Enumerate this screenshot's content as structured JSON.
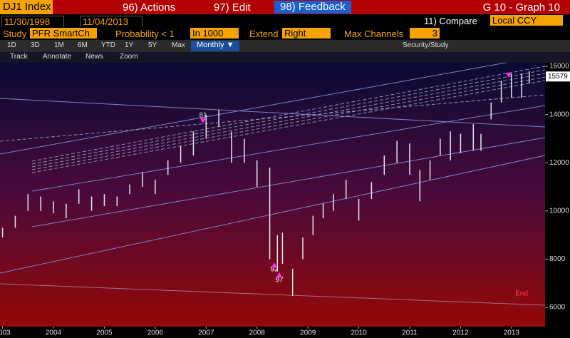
{
  "toolbar": {
    "ticker": "DJ1 Index",
    "menus": [
      "96) Actions",
      "97) Edit",
      "98) Feedback"
    ],
    "graph": "G 10 - Graph 10",
    "start_date": "11/30/1998",
    "end_date": "11/04/2013",
    "compare": "11) Compare",
    "currency": "Local CCY",
    "study_label": "Study",
    "study": "PFR SmartCh",
    "probability": "Probability < 1",
    "in": "In 1000",
    "extend_label": "Extend",
    "extend": "Right",
    "channels_label": "Max Channels",
    "channels": "3",
    "periods": [
      "1D",
      "3D",
      "1M",
      "6M",
      "YTD",
      "1Y",
      "5Y",
      "Max"
    ],
    "frequency": "Monthly ▼",
    "security_study": "Security/Study",
    "tools": [
      "Track",
      "Annotate",
      "News",
      "Zoom"
    ]
  },
  "chart_data": {
    "type": "range-bar",
    "color": "#e6e6ee",
    "x": [
      2003.5,
      2003.75,
      2004.0,
      2004.25,
      2004.5,
      2004.75,
      2005.0,
      2005.25,
      2005.5,
      2005.75,
      2006.0,
      2006.25,
      2006.5,
      2006.75,
      2007.0,
      2007.25,
      2007.5,
      2007.75,
      2008.0,
      2008.25,
      2008.5,
      2008.75,
      2008.9,
      2009.0,
      2009.2,
      2009.4,
      2009.6,
      2009.8,
      2010.0,
      2010.25,
      2010.5,
      2010.75,
      2011.0,
      2011.25,
      2011.5,
      2011.7,
      2011.9,
      2012.1,
      2012.3,
      2012.5,
      2012.75,
      2012.9,
      2013.1,
      2013.3,
      2013.5,
      2013.7,
      2013.85
    ],
    "series": [
      {
        "name": "low",
        "values": [
          8900,
          9300,
          10000,
          10000,
          9900,
          9700,
          10300,
          10000,
          10200,
          10200,
          10700,
          11000,
          10700,
          11500,
          12000,
          12300,
          13000,
          13500,
          12000,
          12000,
          11000,
          8000,
          7500,
          7800,
          6470,
          8000,
          9000,
          9700,
          10000,
          10500,
          9600,
          10500,
          11500,
          12000,
          11500,
          10400,
          11300,
          12300,
          12100,
          12400,
          12500,
          12500,
          13800,
          14500,
          14700,
          14700,
          15300
        ]
      },
      {
        "name": "high",
        "values": [
          9300,
          9800,
          10700,
          10600,
          10400,
          10300,
          10900,
          10600,
          10700,
          10600,
          11100,
          11600,
          11300,
          12100,
          12700,
          13300,
          14000,
          14200,
          13300,
          13000,
          12100,
          11800,
          9000,
          9100,
          7600,
          8900,
          9800,
          10300,
          10700,
          11300,
          10500,
          11200,
          12300,
          12900,
          12800,
          11700,
          12100,
          13000,
          13300,
          13200,
          13600,
          13200,
          14500,
          15400,
          15700,
          15700,
          15800
        ]
      }
    ],
    "xlim": [
      2003.45,
      2014.16
    ],
    "xticks": [
      {
        "value": 2003.5,
        "label": "2003"
      },
      {
        "value": 2004.5,
        "label": "2004"
      },
      {
        "value": 2005.5,
        "label": "2005"
      },
      {
        "value": 2006.5,
        "label": "2006"
      },
      {
        "value": 2007.5,
        "label": "2007"
      },
      {
        "value": 2008.5,
        "label": "2008"
      },
      {
        "value": 2009.5,
        "label": "2009"
      },
      {
        "value": 2010.5,
        "label": "2010"
      },
      {
        "value": 2011.5,
        "label": "2011"
      },
      {
        "value": 2012.5,
        "label": "2012"
      },
      {
        "value": 2013.5,
        "label": "2013"
      }
    ],
    "ylim": [
      5200,
      16150
    ],
    "yticks": [
      6000,
      8000,
      10000,
      12000,
      14000,
      16000
    ],
    "last_price": 15579,
    "annotations": [
      "81",
      "92",
      "97",
      "End"
    ]
  }
}
